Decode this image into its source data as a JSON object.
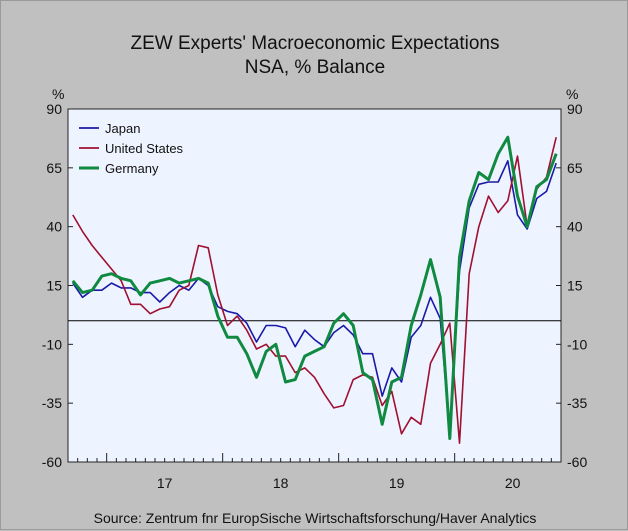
{
  "chart_data": {
    "type": "line",
    "title": "ZEW Experts' Macroeconomic Expectations",
    "subtitle": "NSA, % Balance",
    "source": "Source:   Zentrum fnr EuropSische Wirtschaftsforschung/Haver Analytics",
    "ylabel_left": "%",
    "ylabel_right": "%",
    "ylim": [
      -60,
      90
    ],
    "yticks": [
      "90",
      "65",
      "40",
      "15",
      "-10",
      "-35",
      "-60"
    ],
    "x_labels": [
      "17",
      "18",
      "19",
      "20"
    ],
    "x_start": "2016-09",
    "legend_position": "top-left",
    "series": [
      {
        "name": "Japan",
        "color": "#1a1aa8",
        "values": [
          16,
          10,
          13,
          13,
          16,
          14,
          14,
          12,
          12,
          8,
          12,
          15,
          13,
          18,
          15,
          6,
          4,
          3,
          -1,
          -9,
          -2,
          -2,
          -3,
          -11,
          -4,
          -8,
          -11,
          -5,
          -2,
          -6,
          -14,
          -14,
          -32,
          -20,
          -26,
          -7,
          -2,
          10,
          1,
          -48,
          21,
          48,
          58,
          59,
          59,
          68,
          45,
          39,
          52,
          55,
          67
        ]
      },
      {
        "name": "United States",
        "color": "#a01030",
        "values": [
          45,
          38,
          32,
          27,
          22,
          17,
          7,
          7,
          3,
          5,
          6,
          13,
          15,
          32,
          31,
          11,
          -2,
          2,
          -4,
          -12,
          -10,
          -15,
          -15,
          -22,
          -20,
          -24,
          -31,
          -37,
          -36,
          -25,
          -23,
          -24,
          -36,
          -30,
          -48,
          -41,
          -44,
          -18,
          -10,
          -1,
          -52,
          20,
          40,
          53,
          46,
          51,
          70,
          40,
          56,
          61,
          78
        ]
      },
      {
        "name": "Germany",
        "color": "#108a40",
        "values": [
          17,
          12,
          13,
          19,
          20,
          18,
          17,
          11,
          16,
          17,
          18,
          16,
          17,
          18,
          16,
          2,
          -7,
          -7,
          -14,
          -24,
          -13,
          -10,
          -26,
          -25,
          -15,
          -13,
          -11,
          -1,
          3,
          -2,
          -22,
          -25,
          -44,
          -26,
          -24,
          -2,
          11,
          26,
          10,
          -50,
          27,
          51,
          63,
          60,
          71,
          78,
          53,
          40,
          57,
          60,
          71
        ]
      }
    ]
  }
}
